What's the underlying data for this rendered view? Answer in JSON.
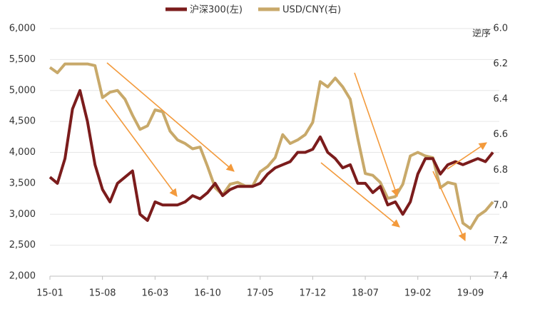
{
  "chart_data": {
    "type": "line",
    "categories": [
      "15-01",
      null,
      null,
      null,
      null,
      null,
      null,
      "15-08",
      null,
      null,
      null,
      null,
      null,
      null,
      "16-03",
      null,
      null,
      null,
      null,
      null,
      null,
      "16-10",
      null,
      null,
      null,
      null,
      null,
      null,
      "17-05",
      null,
      null,
      null,
      null,
      null,
      null,
      "17-12",
      null,
      null,
      null,
      null,
      null,
      null,
      "18-07",
      null,
      null,
      null,
      null,
      null,
      null,
      "19-02",
      null,
      null,
      null,
      null,
      null,
      null,
      "19-09",
      null,
      null,
      null
    ],
    "series": [
      {
        "name": "沪深300(左)",
        "color": "#7b1c1c",
        "values": [
          3600,
          3500,
          3900,
          4700,
          5000,
          4500,
          3800,
          3400,
          3200,
          3500,
          3600,
          3700,
          3000,
          2900,
          3200,
          3150,
          3150,
          3150,
          3200,
          3300,
          3250,
          3350,
          3500,
          3300,
          3400,
          3450,
          3450,
          3450,
          3500,
          3650,
          3750,
          3800,
          3850,
          4000,
          4000,
          4050,
          4250,
          4000,
          3900,
          3750,
          3800,
          3500,
          3500,
          3350,
          3450,
          3150,
          3200,
          3000,
          3200,
          3650,
          3900,
          3900,
          3650,
          3800,
          3850,
          3800,
          3850,
          3900,
          3850,
          4000
        ]
      },
      {
        "name": "USD/CNY(右)",
        "color": "#c8a96a",
        "axis": "y2",
        "values": [
          6.22,
          6.25,
          6.2,
          6.2,
          6.2,
          6.2,
          6.21,
          6.39,
          6.36,
          6.35,
          6.4,
          6.49,
          6.57,
          6.55,
          6.46,
          6.47,
          6.58,
          6.63,
          6.65,
          6.68,
          6.67,
          6.78,
          6.9,
          6.94,
          6.88,
          6.87,
          6.89,
          6.89,
          6.81,
          6.78,
          6.73,
          6.6,
          6.65,
          6.63,
          6.6,
          6.53,
          6.3,
          6.33,
          6.28,
          6.33,
          6.4,
          6.62,
          6.82,
          6.83,
          6.87,
          6.96,
          6.95,
          6.88,
          6.72,
          6.7,
          6.72,
          6.73,
          6.9,
          6.87,
          6.88,
          7.1,
          7.13,
          7.06,
          7.03,
          6.98
        ]
      }
    ],
    "ylim": [
      2000,
      6000
    ],
    "yticks": [
      {
        "value": 2000,
        "label": "2,000"
      },
      {
        "value": 2500,
        "label": "2,500"
      },
      {
        "value": 3000,
        "label": "3,000"
      },
      {
        "value": 3500,
        "label": "3,500"
      },
      {
        "value": 4000,
        "label": "4,000"
      },
      {
        "value": 4500,
        "label": "4,500"
      },
      {
        "value": 5000,
        "label": "5,000"
      },
      {
        "value": 5500,
        "label": "5,500"
      },
      {
        "value": 6000,
        "label": "6,000"
      }
    ],
    "y2lim": [
      6.0,
      7.4
    ],
    "y2_inverted": true,
    "y2ticks": [
      {
        "value": 6,
        "label": "6.0"
      },
      6.2,
      6.4,
      6.6,
      6.8,
      {
        "value": 7,
        "label": "7.0"
      },
      7.2,
      7.4
    ],
    "y2_annotation": "逆序",
    "grid": true,
    "legend": "top"
  }
}
